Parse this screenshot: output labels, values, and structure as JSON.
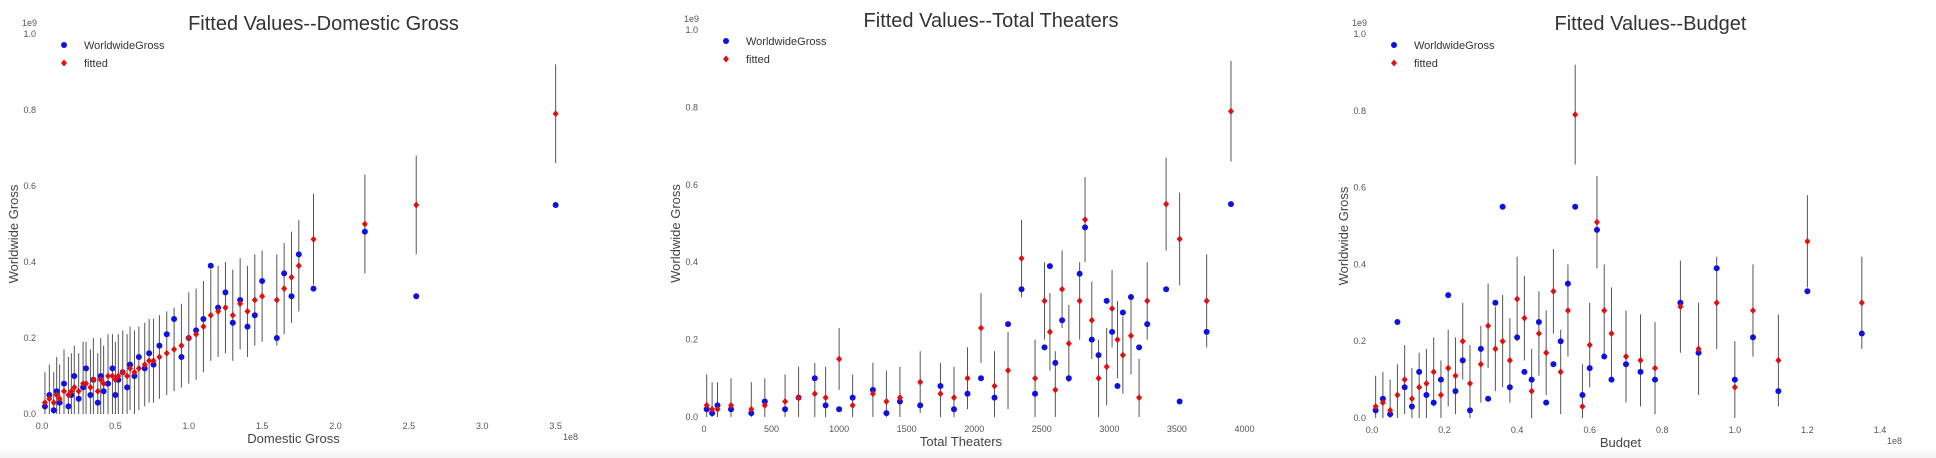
{
  "chart_data": [
    {
      "type": "scatter",
      "title": "Fitted Values--Domestic Gross",
      "xlabel": "Domestic Gross",
      "ylabel": "Worldwide Gross",
      "x_offset_label": "1e8",
      "y_offset_label": "1e9",
      "xlim": [
        0,
        3.7
      ],
      "ylim": [
        0,
        1.0
      ],
      "xticks": [
        "0.0",
        "0.5",
        "1.0",
        "1.5",
        "2.0",
        "2.5",
        "3.0",
        "3.5"
      ],
      "xtick_values": [
        0,
        0.5,
        1.0,
        1.5,
        2.0,
        2.5,
        3.0,
        3.5
      ],
      "yticks": [
        "0.0",
        "0.2",
        "0.4",
        "0.6",
        "0.8",
        "1.0"
      ],
      "ytick_values": [
        0,
        0.2,
        0.4,
        0.6,
        0.8,
        1.0
      ],
      "legend": [
        "WorldwideGross",
        "fitted"
      ],
      "legend_position": "top-left",
      "series_colors": {
        "actual": "#1010e0",
        "fitted": "#e01010"
      },
      "points": [
        [
          0.02,
          0.02,
          0.03,
          0.08
        ],
        [
          0.05,
          0.05,
          0.04,
          0.09
        ],
        [
          0.08,
          0.01,
          0.03,
          0.08
        ],
        [
          0.1,
          0.06,
          0.05,
          0.1
        ],
        [
          0.12,
          0.03,
          0.04,
          0.09
        ],
        [
          0.15,
          0.08,
          0.06,
          0.11
        ],
        [
          0.18,
          0.02,
          0.05,
          0.1
        ],
        [
          0.2,
          0.05,
          0.06,
          0.1
        ],
        [
          0.22,
          0.1,
          0.07,
          0.11
        ],
        [
          0.25,
          0.04,
          0.06,
          0.1
        ],
        [
          0.28,
          0.07,
          0.08,
          0.11
        ],
        [
          0.3,
          0.12,
          0.08,
          0.11
        ],
        [
          0.33,
          0.05,
          0.07,
          0.1
        ],
        [
          0.35,
          0.09,
          0.09,
          0.11
        ],
        [
          0.38,
          0.03,
          0.06,
          0.1
        ],
        [
          0.4,
          0.1,
          0.09,
          0.11
        ],
        [
          0.42,
          0.06,
          0.08,
          0.1
        ],
        [
          0.45,
          0.08,
          0.1,
          0.11
        ],
        [
          0.48,
          0.12,
          0.1,
          0.11
        ],
        [
          0.5,
          0.05,
          0.09,
          0.1
        ],
        [
          0.52,
          0.09,
          0.1,
          0.11
        ],
        [
          0.55,
          0.11,
          0.11,
          0.11
        ],
        [
          0.58,
          0.07,
          0.1,
          0.11
        ],
        [
          0.6,
          0.13,
          0.12,
          0.11
        ],
        [
          0.63,
          0.1,
          0.11,
          0.11
        ],
        [
          0.66,
          0.15,
          0.12,
          0.11
        ],
        [
          0.7,
          0.12,
          0.13,
          0.11
        ],
        [
          0.73,
          0.16,
          0.14,
          0.11
        ],
        [
          0.76,
          0.13,
          0.14,
          0.11
        ],
        [
          0.8,
          0.18,
          0.15,
          0.11
        ],
        [
          0.85,
          0.21,
          0.16,
          0.11
        ],
        [
          0.9,
          0.25,
          0.17,
          0.11
        ],
        [
          0.95,
          0.15,
          0.18,
          0.11
        ],
        [
          1.0,
          0.2,
          0.2,
          0.12
        ],
        [
          1.05,
          0.22,
          0.21,
          0.12
        ],
        [
          1.1,
          0.25,
          0.23,
          0.12
        ],
        [
          1.15,
          0.39,
          0.26,
          0.12
        ],
        [
          1.2,
          0.28,
          0.27,
          0.12
        ],
        [
          1.25,
          0.32,
          0.28,
          0.12
        ],
        [
          1.3,
          0.24,
          0.26,
          0.12
        ],
        [
          1.35,
          0.3,
          0.29,
          0.12
        ],
        [
          1.4,
          0.23,
          0.27,
          0.12
        ],
        [
          1.45,
          0.26,
          0.3,
          0.12
        ],
        [
          1.5,
          0.35,
          0.31,
          0.12
        ],
        [
          1.6,
          0.2,
          0.3,
          0.12
        ],
        [
          1.65,
          0.37,
          0.33,
          0.12
        ],
        [
          1.7,
          0.31,
          0.36,
          0.12
        ],
        [
          1.75,
          0.42,
          0.39,
          0.12
        ],
        [
          1.85,
          0.33,
          0.46,
          0.12
        ],
        [
          2.2,
          0.48,
          0.5,
          0.13
        ],
        [
          2.55,
          0.31,
          0.55,
          0.13
        ],
        [
          3.5,
          0.55,
          0.79,
          0.13
        ]
      ]
    },
    {
      "type": "scatter",
      "title": "Fitted Values--Total Theaters",
      "xlabel": "Total Theaters",
      "ylabel": "Worldwide Gross",
      "y_offset_label": "1e9",
      "xlim": [
        0,
        4100
      ],
      "ylim": [
        0,
        1.0
      ],
      "xticks": [
        "0",
        "500",
        "1000",
        "1500",
        "2000",
        "2500",
        "3000",
        "3500",
        "4000"
      ],
      "xtick_values": [
        0,
        500,
        1000,
        1500,
        2000,
        2500,
        3000,
        3500,
        4000
      ],
      "yticks": [
        "0.0",
        "0.2",
        "0.4",
        "0.6",
        "0.8",
        "1.0"
      ],
      "ytick_values": [
        0,
        0.2,
        0.4,
        0.6,
        0.8,
        1.0
      ],
      "legend": [
        "WorldwideGross",
        "fitted"
      ],
      "legend_position": "top-left",
      "series_colors": {
        "actual": "#1010e0",
        "fitted": "#e01010"
      },
      "points": [
        [
          20,
          0.02,
          0.03,
          0.08
        ],
        [
          60,
          0.01,
          0.02,
          0.07
        ],
        [
          100,
          0.03,
          0.02,
          0.07
        ],
        [
          200,
          0.02,
          0.03,
          0.07
        ],
        [
          350,
          0.01,
          0.02,
          0.07
        ],
        [
          450,
          0.04,
          0.03,
          0.07
        ],
        [
          600,
          0.02,
          0.04,
          0.07
        ],
        [
          700,
          0.05,
          0.05,
          0.08
        ],
        [
          820,
          0.1,
          0.06,
          0.08
        ],
        [
          900,
          0.03,
          0.05,
          0.08
        ],
        [
          1000,
          0.02,
          0.15,
          0.08
        ],
        [
          1100,
          0.05,
          0.03,
          0.08
        ],
        [
          1250,
          0.07,
          0.06,
          0.08
        ],
        [
          1350,
          0.01,
          0.04,
          0.08
        ],
        [
          1450,
          0.04,
          0.05,
          0.08
        ],
        [
          1600,
          0.03,
          0.09,
          0.08
        ],
        [
          1750,
          0.08,
          0.06,
          0.08
        ],
        [
          1850,
          0.02,
          0.05,
          0.08
        ],
        [
          1950,
          0.06,
          0.1,
          0.08
        ],
        [
          2050,
          0.1,
          0.23,
          0.09
        ],
        [
          2150,
          0.05,
          0.08,
          0.09
        ],
        [
          2250,
          0.24,
          0.12,
          0.1
        ],
        [
          2350,
          0.33,
          0.41,
          0.1
        ],
        [
          2450,
          0.06,
          0.1,
          0.1
        ],
        [
          2520,
          0.18,
          0.3,
          0.1
        ],
        [
          2560,
          0.39,
          0.22,
          0.1
        ],
        [
          2600,
          0.14,
          0.07,
          0.1
        ],
        [
          2650,
          0.25,
          0.33,
          0.1
        ],
        [
          2700,
          0.1,
          0.19,
          0.1
        ],
        [
          2780,
          0.37,
          0.3,
          0.1
        ],
        [
          2820,
          0.49,
          0.51,
          0.11
        ],
        [
          2870,
          0.2,
          0.25,
          0.1
        ],
        [
          2920,
          0.16,
          0.1,
          0.1
        ],
        [
          2980,
          0.3,
          0.13,
          0.1
        ],
        [
          3020,
          0.22,
          0.28,
          0.1
        ],
        [
          3060,
          0.08,
          0.2,
          0.1
        ],
        [
          3100,
          0.27,
          0.16,
          0.1
        ],
        [
          3160,
          0.31,
          0.21,
          0.1
        ],
        [
          3220,
          0.18,
          0.05,
          0.1
        ],
        [
          3280,
          0.24,
          0.3,
          0.1
        ],
        [
          3420,
          0.33,
          0.55,
          0.12
        ],
        [
          3520,
          0.04,
          0.46,
          0.12
        ],
        [
          3720,
          0.22,
          0.3,
          0.12
        ],
        [
          3900,
          0.55,
          0.79,
          0.13
        ]
      ]
    },
    {
      "type": "scatter",
      "title": "Fitted Values--Budget",
      "xlabel": "Budget",
      "ylabel": "Worldwide Gross",
      "x_offset_label": "1e8",
      "y_offset_label": "1e9",
      "xlim": [
        0,
        1.48
      ],
      "ylim": [
        0,
        1.0
      ],
      "xticks": [
        "0.0",
        "0.2",
        "0.4",
        "0.6",
        "0.8",
        "1.0",
        "1.2",
        "1.4"
      ],
      "xtick_values": [
        0,
        0.2,
        0.4,
        0.6,
        0.8,
        1.0,
        1.2,
        1.4
      ],
      "yticks": [
        "0.0",
        "0.2",
        "0.4",
        "0.6",
        "0.8",
        "1.0"
      ],
      "ytick_values": [
        0,
        0.2,
        0.4,
        0.6,
        0.8,
        1.0
      ],
      "legend": [
        "WorldwideGross",
        "fitted"
      ],
      "legend_position": "top-left",
      "series_colors": {
        "actual": "#1010e0",
        "fitted": "#e01010"
      },
      "points": [
        [
          0.01,
          0.02,
          0.03,
          0.08
        ],
        [
          0.03,
          0.05,
          0.04,
          0.08
        ],
        [
          0.05,
          0.01,
          0.02,
          0.08
        ],
        [
          0.07,
          0.25,
          0.06,
          0.08
        ],
        [
          0.09,
          0.08,
          0.1,
          0.09
        ],
        [
          0.11,
          0.03,
          0.05,
          0.08
        ],
        [
          0.13,
          0.12,
          0.08,
          0.09
        ],
        [
          0.15,
          0.06,
          0.09,
          0.09
        ],
        [
          0.17,
          0.04,
          0.12,
          0.09
        ],
        [
          0.19,
          0.1,
          0.06,
          0.09
        ],
        [
          0.21,
          0.32,
          0.13,
          0.1
        ],
        [
          0.23,
          0.07,
          0.11,
          0.1
        ],
        [
          0.25,
          0.15,
          0.2,
          0.1
        ],
        [
          0.27,
          0.02,
          0.09,
          0.1
        ],
        [
          0.3,
          0.18,
          0.14,
          0.1
        ],
        [
          0.32,
          0.05,
          0.24,
          0.11
        ],
        [
          0.34,
          0.3,
          0.18,
          0.11
        ],
        [
          0.36,
          0.55,
          0.2,
          0.12
        ],
        [
          0.38,
          0.08,
          0.15,
          0.11
        ],
        [
          0.4,
          0.21,
          0.31,
          0.11
        ],
        [
          0.42,
          0.12,
          0.26,
          0.11
        ],
        [
          0.44,
          0.1,
          0.07,
          0.11
        ],
        [
          0.46,
          0.25,
          0.22,
          0.11
        ],
        [
          0.48,
          0.04,
          0.17,
          0.11
        ],
        [
          0.5,
          0.14,
          0.33,
          0.11
        ],
        [
          0.52,
          0.2,
          0.12,
          0.11
        ],
        [
          0.54,
          0.35,
          0.28,
          0.12
        ],
        [
          0.56,
          0.55,
          0.79,
          0.13
        ],
        [
          0.58,
          0.06,
          0.03,
          0.11
        ],
        [
          0.6,
          0.13,
          0.19,
          0.11
        ],
        [
          0.62,
          0.49,
          0.51,
          0.12
        ],
        [
          0.64,
          0.16,
          0.28,
          0.12
        ],
        [
          0.66,
          0.1,
          0.22,
          0.12
        ],
        [
          0.7,
          0.14,
          0.16,
          0.12
        ],
        [
          0.74,
          0.12,
          0.15,
          0.12
        ],
        [
          0.78,
          0.1,
          0.13,
          0.12
        ],
        [
          0.85,
          0.3,
          0.29,
          0.12
        ],
        [
          0.9,
          0.17,
          0.18,
          0.12
        ],
        [
          0.95,
          0.39,
          0.3,
          0.12
        ],
        [
          1.0,
          0.1,
          0.08,
          0.12
        ],
        [
          1.05,
          0.21,
          0.28,
          0.12
        ],
        [
          1.12,
          0.07,
          0.15,
          0.12
        ],
        [
          1.2,
          0.33,
          0.46,
          0.12
        ],
        [
          1.35,
          0.22,
          0.3,
          0.12
        ]
      ]
    }
  ]
}
